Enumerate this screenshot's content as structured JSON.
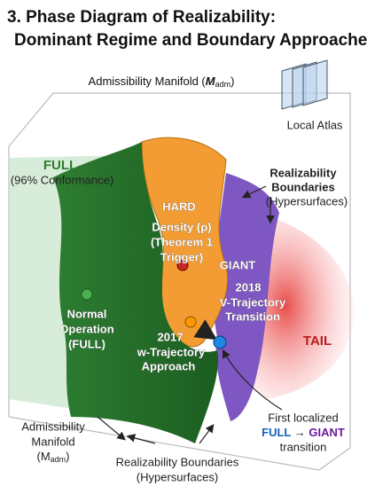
{
  "title": {
    "line1": "3. Phase Diagram of Realizability:",
    "line2": "Dominant Regime and Boundary Approaches."
  },
  "top_label": {
    "text": "Admissibility Manifold (",
    "symbol": "M",
    "sub": "adm",
    "suffix": ")"
  },
  "atlas_label": "Local Atlas",
  "full": {
    "name": "FULL",
    "note": "(96% Conformance)"
  },
  "hard": {
    "name": "HARD",
    "lines": [
      "Density (ρ)",
      "(Theorem 1",
      "Trigger)"
    ]
  },
  "boundaries_right": [
    "Realizability",
    "Boundaries",
    "(Hypersurfaces)"
  ],
  "giant": "GIANT",
  "trajectory_2018": [
    "2018",
    "V-Trajectory",
    "Transition"
  ],
  "normal": [
    "Normal",
    "Operation",
    "(FULL)"
  ],
  "trajectory_2017": [
    "2017",
    "w-Trajectory",
    "Approach"
  ],
  "tail": "TAIL",
  "first_transition": {
    "line1": "First localized",
    "from": "FULL",
    "arrow": "→",
    "to": "GIANT",
    "line3": "transition"
  },
  "bottom_left": {
    "line1": "Admissibility",
    "line2": "Manifold",
    "symbol": "(M",
    "sub": "adm",
    "suffix": ")"
  },
  "bottom_center": [
    "Realizability Boundaries",
    "(Hypersurfaces)"
  ]
}
